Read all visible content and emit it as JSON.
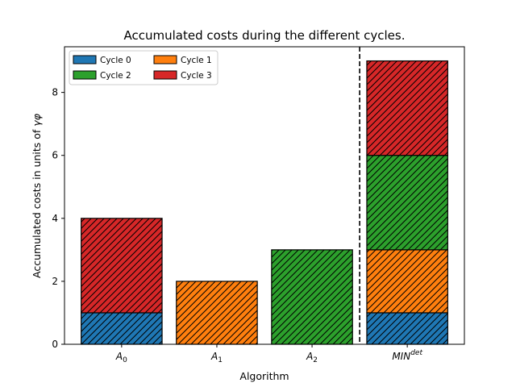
{
  "chart_data": {
    "type": "bar",
    "stacked": true,
    "title": "Accumulated costs during the different cycles.",
    "xlabel": "Algorithm",
    "ylabel_text": "Accumulated costs in units of ",
    "ylabel_symbols": "γφ",
    "categories": [
      {
        "base": "A",
        "sub": "0",
        "sup": ""
      },
      {
        "base": "A",
        "sub": "1",
        "sup": ""
      },
      {
        "base": "A",
        "sub": "2",
        "sup": ""
      },
      {
        "base": "MIN",
        "sub": "",
        "sup": "det"
      }
    ],
    "series": [
      {
        "name": "Cycle 0",
        "color": "#1f77b4",
        "values": [
          1,
          0,
          0,
          1
        ]
      },
      {
        "name": "Cycle 1",
        "color": "#ff7f0e",
        "values": [
          0,
          2,
          0,
          2
        ]
      },
      {
        "name": "Cycle 2",
        "color": "#2ca02c",
        "values": [
          0,
          0,
          3,
          3
        ]
      },
      {
        "name": "Cycle 3",
        "color": "#d62728",
        "values": [
          3,
          0,
          0,
          3
        ]
      }
    ],
    "ylim": [
      0,
      9.45
    ],
    "yticks": [
      0,
      2,
      4,
      6,
      8
    ],
    "hatch": "diagonal",
    "separator_line": {
      "after_category": 2,
      "style": "dashed"
    },
    "legend": {
      "placement": "top-left",
      "columns": 2
    },
    "grid": false
  }
}
